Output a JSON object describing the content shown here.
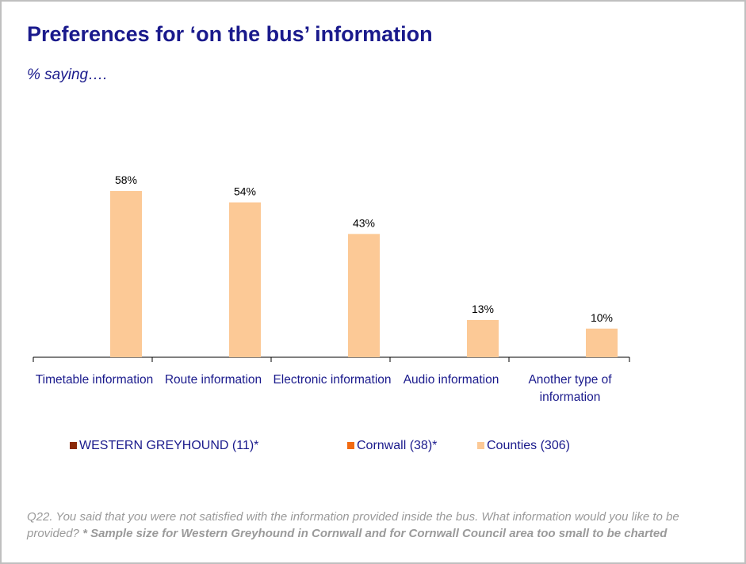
{
  "chart_data": {
    "type": "bar",
    "title": "Preferences for ‘on the bus’ information",
    "subtitle": "% saying….",
    "categories": [
      "Timetable information",
      "Route information",
      "Electronic information",
      "Audio information",
      "Another type of information"
    ],
    "series": [
      {
        "name": "WESTERN GREYHOUND (11)*",
        "color": "#8b2a0a",
        "values": [
          null,
          null,
          null,
          null,
          null
        ]
      },
      {
        "name": "Cornwall (38)*",
        "color": "#f26b12",
        "values": [
          null,
          null,
          null,
          null,
          null
        ]
      },
      {
        "name": "Counties (306)",
        "color": "#fcc996",
        "values": [
          58,
          54,
          43,
          13,
          10
        ],
        "value_labels": [
          "58%",
          "54%",
          "43%",
          "13%",
          "10%"
        ]
      }
    ],
    "legend": "bottom",
    "footnote": {
      "text": "Q22.  You said that you were not satisfied with the information provided inside the bus.  What information would you like to be provided?",
      "bold": "* Sample size for Western Greyhound in Cornwall and for Cornwall Council area too small to be charted"
    }
  }
}
